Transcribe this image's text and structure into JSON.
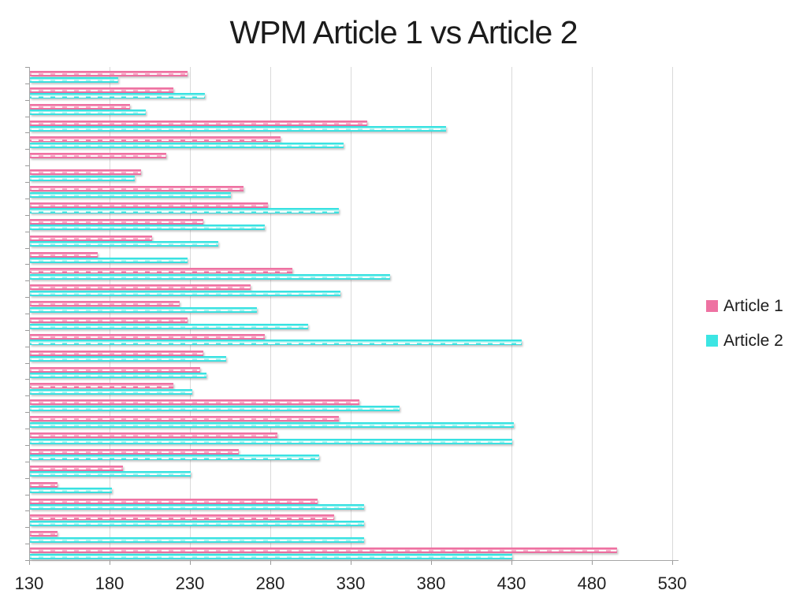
{
  "title": "WPM Article 1 vs Article 2",
  "colors": {
    "article1": "#ee72a2",
    "article2": "#3ce5e3",
    "gridline": "#d9d9d9",
    "axis": "#a6a6a6",
    "title_text": "#1c1c1c"
  },
  "chart_data": {
    "type": "bar",
    "orientation": "horizontal",
    "title": "WPM Article 1 vs Article 2",
    "xlabel": "",
    "ylabel": "",
    "grid": true,
    "legend_position": "right",
    "x_axis": {
      "min": 130,
      "max": 530,
      "tick_step": 50,
      "ticks": [
        130,
        180,
        230,
        280,
        330,
        380,
        430,
        480,
        530
      ]
    },
    "y_axis": {
      "n_categories": 30,
      "labels_visible": false
    },
    "series": [
      {
        "name": "Article 1",
        "color": "#ee72a2",
        "values": [
          228,
          219,
          192,
          340,
          286,
          215,
          199,
          263,
          278,
          238,
          206,
          172,
          293,
          267,
          223,
          228,
          276,
          238,
          236,
          219,
          335,
          322,
          284,
          260,
          188,
          147,
          309,
          319,
          147,
          495
        ]
      },
      {
        "name": "Article 2",
        "color": "#3ce5e3",
        "values": [
          185,
          239,
          202,
          389,
          325,
          null,
          195,
          255,
          322,
          276,
          247,
          228,
          354,
          323,
          271,
          303,
          436,
          252,
          240,
          231,
          360,
          431,
          430,
          310,
          230,
          181,
          338,
          338,
          338,
          430
        ]
      }
    ]
  }
}
